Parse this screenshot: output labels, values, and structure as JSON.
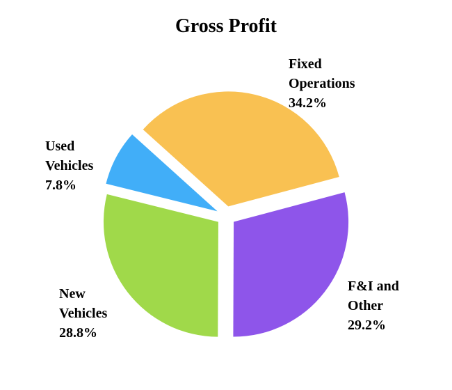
{
  "chart_data": {
    "type": "pie",
    "title": "Gross Profit",
    "categories": [
      "Fixed Operations",
      "F&I and Other",
      "New Vehicles",
      "Used Vehicles"
    ],
    "values": [
      34.2,
      29.2,
      28.8,
      7.8
    ],
    "value_labels": [
      "34.2%",
      "29.2%",
      "28.8%",
      "7.8%"
    ],
    "colors": [
      "#f9c152",
      "#8e55ea",
      "#a0d94a",
      "#41aef8"
    ]
  }
}
